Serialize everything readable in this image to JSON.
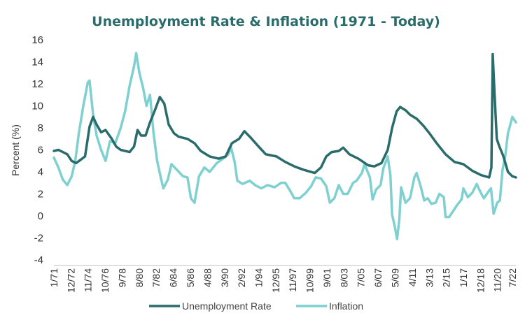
{
  "chart_data": {
    "type": "line",
    "title": "Unemployment Rate & Inflation (1971 - Today)",
    "xlabel": "",
    "ylabel": "Percent (%)",
    "ylim": [
      -4,
      16
    ],
    "yticks": [
      -4,
      -2,
      0,
      2,
      4,
      6,
      8,
      10,
      12,
      14,
      16
    ],
    "grid": false,
    "legend_position": "bottom",
    "x_tick_labels": [
      {
        "label": "1/71",
        "t": 1971.0
      },
      {
        "label": "12/72",
        "t": 1972.92
      },
      {
        "label": "11/74",
        "t": 1974.83
      },
      {
        "label": "10/76",
        "t": 1976.75
      },
      {
        "label": "9/78",
        "t": 1978.67
      },
      {
        "label": "8/80",
        "t": 1980.58
      },
      {
        "label": "7/82",
        "t": 1982.5
      },
      {
        "label": "6/84",
        "t": 1984.42
      },
      {
        "label": "5/86",
        "t": 1986.33
      },
      {
        "label": "4/88",
        "t": 1988.25
      },
      {
        "label": "3/90",
        "t": 1990.17
      },
      {
        "label": "2/92",
        "t": 1992.08
      },
      {
        "label": "1/94",
        "t": 1994.0
      },
      {
        "label": "12/95",
        "t": 1995.92
      },
      {
        "label": "11/97",
        "t": 1997.83
      },
      {
        "label": "10/99",
        "t": 1999.75
      },
      {
        "label": "9/01",
        "t": 2001.67
      },
      {
        "label": "8/03",
        "t": 2003.58
      },
      {
        "label": "7/05",
        "t": 2005.5
      },
      {
        "label": "6/07",
        "t": 2007.42
      },
      {
        "label": "5/09",
        "t": 2009.33
      },
      {
        "label": "4/11",
        "t": 2011.25
      },
      {
        "label": "3/13",
        "t": 2013.17
      },
      {
        "label": "2/15",
        "t": 2015.08
      },
      {
        "label": "1/17",
        "t": 2017.0
      },
      {
        "label": "12/18",
        "t": 2018.92
      },
      {
        "label": "11/20",
        "t": 2020.83
      },
      {
        "label": "7/22",
        "t": 2022.5
      }
    ],
    "series": [
      {
        "name": "Unemployment Rate",
        "color": "#2a6b6b",
        "points": [
          [
            1971.0,
            5.9
          ],
          [
            1971.5,
            6.0
          ],
          [
            1972.0,
            5.8
          ],
          [
            1972.5,
            5.6
          ],
          [
            1973.0,
            5.0
          ],
          [
            1973.5,
            4.8
          ],
          [
            1974.0,
            5.1
          ],
          [
            1974.5,
            5.4
          ],
          [
            1975.0,
            8.1
          ],
          [
            1975.4,
            9.0
          ],
          [
            1975.8,
            8.3
          ],
          [
            1976.3,
            7.6
          ],
          [
            1976.8,
            7.8
          ],
          [
            1977.5,
            7.0
          ],
          [
            1978.0,
            6.3
          ],
          [
            1978.5,
            6.0
          ],
          [
            1979.0,
            5.9
          ],
          [
            1979.5,
            5.8
          ],
          [
            1980.0,
            6.3
          ],
          [
            1980.4,
            7.8
          ],
          [
            1980.8,
            7.3
          ],
          [
            1981.3,
            7.3
          ],
          [
            1981.8,
            8.5
          ],
          [
            1982.3,
            9.5
          ],
          [
            1982.9,
            10.8
          ],
          [
            1983.4,
            10.2
          ],
          [
            1983.9,
            8.3
          ],
          [
            1984.5,
            7.5
          ],
          [
            1985.0,
            7.2
          ],
          [
            1986.0,
            7.0
          ],
          [
            1986.8,
            6.6
          ],
          [
            1987.5,
            5.9
          ],
          [
            1988.5,
            5.4
          ],
          [
            1989.5,
            5.2
          ],
          [
            1990.3,
            5.4
          ],
          [
            1991.0,
            6.6
          ],
          [
            1991.8,
            7.0
          ],
          [
            1992.4,
            7.7
          ],
          [
            1993.0,
            7.2
          ],
          [
            1994.0,
            6.3
          ],
          [
            1994.8,
            5.6
          ],
          [
            1996.0,
            5.4
          ],
          [
            1997.0,
            4.9
          ],
          [
            1998.0,
            4.5
          ],
          [
            1999.0,
            4.2
          ],
          [
            2000.3,
            3.9
          ],
          [
            2001.0,
            4.4
          ],
          [
            2001.6,
            5.4
          ],
          [
            2002.2,
            5.8
          ],
          [
            2003.0,
            5.9
          ],
          [
            2003.5,
            6.2
          ],
          [
            2004.2,
            5.6
          ],
          [
            2005.2,
            5.2
          ],
          [
            2006.3,
            4.6
          ],
          [
            2007.0,
            4.5
          ],
          [
            2007.8,
            4.8
          ],
          [
            2008.5,
            6.0
          ],
          [
            2009.0,
            8.0
          ],
          [
            2009.5,
            9.5
          ],
          [
            2009.9,
            9.9
          ],
          [
            2010.5,
            9.6
          ],
          [
            2011.0,
            9.2
          ],
          [
            2011.8,
            8.8
          ],
          [
            2012.5,
            8.2
          ],
          [
            2013.2,
            7.5
          ],
          [
            2014.0,
            6.6
          ],
          [
            2015.0,
            5.6
          ],
          [
            2016.0,
            4.9
          ],
          [
            2017.0,
            4.7
          ],
          [
            2018.0,
            4.1
          ],
          [
            2019.0,
            3.7
          ],
          [
            2019.9,
            3.5
          ],
          [
            2020.15,
            4.4
          ],
          [
            2020.3,
            14.7
          ],
          [
            2020.5,
            11.1
          ],
          [
            2020.75,
            7.0
          ],
          [
            2021.0,
            6.4
          ],
          [
            2021.5,
            5.4
          ],
          [
            2022.0,
            4.0
          ],
          [
            2022.5,
            3.6
          ],
          [
            2022.9,
            3.5
          ]
        ]
      },
      {
        "name": "Inflation",
        "color": "#7fd0d0",
        "points": [
          [
            1971.0,
            5.3
          ],
          [
            1971.5,
            4.4
          ],
          [
            1972.0,
            3.3
          ],
          [
            1972.5,
            2.8
          ],
          [
            1973.0,
            3.6
          ],
          [
            1973.4,
            5.0
          ],
          [
            1973.8,
            7.5
          ],
          [
            1974.3,
            10.0
          ],
          [
            1974.8,
            12.1
          ],
          [
            1975.0,
            12.3
          ],
          [
            1975.4,
            9.2
          ],
          [
            1975.8,
            7.3
          ],
          [
            1976.3,
            6.0
          ],
          [
            1976.8,
            5.0
          ],
          [
            1977.3,
            6.8
          ],
          [
            1977.9,
            6.6
          ],
          [
            1978.5,
            8.0
          ],
          [
            1979.0,
            9.5
          ],
          [
            1979.5,
            11.8
          ],
          [
            1980.0,
            13.6
          ],
          [
            1980.25,
            14.8
          ],
          [
            1980.6,
            13.0
          ],
          [
            1981.0,
            11.7
          ],
          [
            1981.4,
            10.0
          ],
          [
            1981.8,
            11.0
          ],
          [
            1982.2,
            7.5
          ],
          [
            1982.6,
            5.0
          ],
          [
            1983.0,
            3.5
          ],
          [
            1983.3,
            2.5
          ],
          [
            1983.8,
            3.3
          ],
          [
            1984.2,
            4.7
          ],
          [
            1984.8,
            4.2
          ],
          [
            1985.5,
            3.6
          ],
          [
            1986.0,
            3.5
          ],
          [
            1986.4,
            1.6
          ],
          [
            1986.8,
            1.2
          ],
          [
            1987.3,
            3.6
          ],
          [
            1987.9,
            4.4
          ],
          [
            1988.5,
            4.0
          ],
          [
            1989.3,
            4.8
          ],
          [
            1990.0,
            5.2
          ],
          [
            1990.6,
            5.6
          ],
          [
            1990.9,
            6.2
          ],
          [
            1991.3,
            4.9
          ],
          [
            1991.6,
            3.2
          ],
          [
            1992.2,
            2.9
          ],
          [
            1993.0,
            3.2
          ],
          [
            1993.6,
            2.8
          ],
          [
            1994.3,
            2.5
          ],
          [
            1995.0,
            2.8
          ],
          [
            1995.8,
            2.6
          ],
          [
            1996.5,
            3.0
          ],
          [
            1997.0,
            3.0
          ],
          [
            1997.6,
            2.2
          ],
          [
            1998.0,
            1.6
          ],
          [
            1998.6,
            1.6
          ],
          [
            1999.3,
            2.1
          ],
          [
            1999.9,
            2.7
          ],
          [
            2000.4,
            3.5
          ],
          [
            2001.0,
            3.4
          ],
          [
            2001.6,
            2.7
          ],
          [
            2002.0,
            1.2
          ],
          [
            2002.5,
            1.6
          ],
          [
            2003.0,
            2.8
          ],
          [
            2003.5,
            2.0
          ],
          [
            2004.0,
            2.0
          ],
          [
            2004.6,
            3.0
          ],
          [
            2005.0,
            3.2
          ],
          [
            2005.6,
            3.9
          ],
          [
            2005.9,
            4.7
          ],
          [
            2006.5,
            3.5
          ],
          [
            2006.8,
            1.5
          ],
          [
            2007.2,
            2.4
          ],
          [
            2007.7,
            2.8
          ],
          [
            2008.0,
            4.3
          ],
          [
            2008.5,
            5.4
          ],
          [
            2008.8,
            3.7
          ],
          [
            2009.0,
            0.1
          ],
          [
            2009.3,
            -1.0
          ],
          [
            2009.55,
            -2.1
          ],
          [
            2009.8,
            -0.4
          ],
          [
            2010.0,
            2.6
          ],
          [
            2010.5,
            1.2
          ],
          [
            2011.0,
            1.6
          ],
          [
            2011.5,
            3.5
          ],
          [
            2011.75,
            3.9
          ],
          [
            2012.2,
            2.7
          ],
          [
            2012.6,
            1.4
          ],
          [
            2013.0,
            1.6
          ],
          [
            2013.4,
            1.1
          ],
          [
            2013.9,
            1.2
          ],
          [
            2014.3,
            2.0
          ],
          [
            2014.8,
            1.7
          ],
          [
            2015.0,
            -0.1
          ],
          [
            2015.4,
            -0.1
          ],
          [
            2015.9,
            0.5
          ],
          [
            2016.3,
            1.0
          ],
          [
            2016.8,
            1.5
          ],
          [
            2017.0,
            2.5
          ],
          [
            2017.5,
            1.7
          ],
          [
            2018.0,
            2.1
          ],
          [
            2018.5,
            2.9
          ],
          [
            2018.9,
            2.2
          ],
          [
            2019.3,
            1.6
          ],
          [
            2019.9,
            2.3
          ],
          [
            2020.1,
            2.5
          ],
          [
            2020.4,
            0.2
          ],
          [
            2020.8,
            1.2
          ],
          [
            2021.1,
            1.4
          ],
          [
            2021.4,
            4.2
          ],
          [
            2021.7,
            5.4
          ],
          [
            2022.0,
            7.5
          ],
          [
            2022.5,
            9.0
          ],
          [
            2022.9,
            8.5
          ]
        ]
      }
    ]
  }
}
